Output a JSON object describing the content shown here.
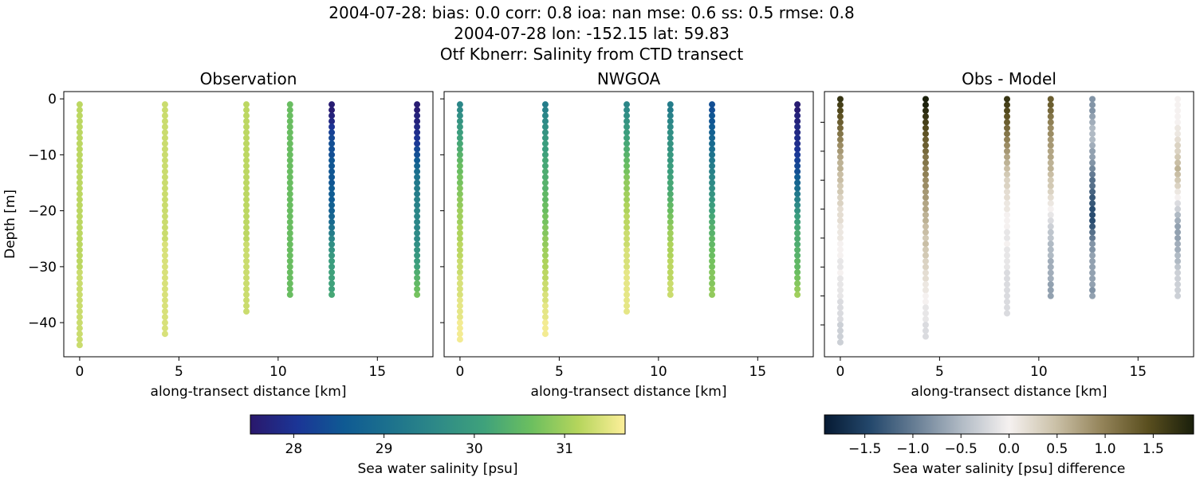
{
  "chart_data": {
    "type": "scatter",
    "title_lines": [
      "2004-07-28: bias: 0.0  corr: 0.8  ioa: nan  mse: 0.6  ss: 0.5  rmse: 0.8",
      "2004-07-28 lon: -152.15 lat: 59.83",
      "Otf Kbnerr: Salinity from CTD transect"
    ],
    "panels": [
      {
        "title": "Observation",
        "xlabel": "along-transect distance [km]",
        "ylabel": "Depth [m]",
        "xticks": [
          0,
          5,
          10,
          15
        ],
        "yticks": [
          0,
          -10,
          -20,
          -30,
          -40
        ],
        "xlim": [
          -0.8,
          17.8
        ],
        "ylim": [
          -46.1,
          1.3
        ],
        "source": "obs"
      },
      {
        "title": "NWGOA",
        "xlabel": "along-transect distance [km]",
        "ylabel": "",
        "xticks": [
          0,
          5,
          10,
          15
        ],
        "yticks": [],
        "xlim": [
          -0.8,
          17.8
        ],
        "ylim": [
          -46.1,
          1.3
        ],
        "source": "model"
      },
      {
        "title": "Obs - Model",
        "xlabel": "along-transect distance [km]",
        "ylabel": "",
        "xticks": [
          0,
          5,
          10,
          15
        ],
        "yticks_unlabeled": [
          -5,
          -10,
          -15,
          -20,
          -25,
          -30,
          -35,
          -40
        ],
        "xlim": [
          -0.8,
          17.8
        ],
        "ylim": [
          -45.5,
          0.3
        ],
        "source": "diff"
      }
    ],
    "stations_km": [
      0,
      4.3,
      8.4,
      10.6,
      12.7,
      17.0
    ],
    "obs_salinity_by_depth_1m": [
      [
        31.2,
        31.2,
        31.2,
        31.2,
        31.2,
        31.2,
        31.2,
        31.2,
        31.2,
        31.2,
        31.2,
        31.2,
        31.2,
        31.2,
        31.2,
        31.2,
        31.2,
        31.2,
        31.2,
        31.2,
        31.2,
        31.2,
        31.2,
        31.2,
        31.2,
        31.2,
        31.2,
        31.2,
        31.2,
        31.2,
        31.3,
        31.3,
        31.3,
        31.3,
        31.3,
        31.3,
        31.3,
        31.3,
        31.3,
        31.3,
        31.3,
        31.3,
        31.3,
        31.3
      ],
      [
        31.3,
        31.3,
        31.3,
        31.3,
        31.3,
        31.3,
        31.3,
        31.3,
        31.3,
        31.3,
        31.3,
        31.3,
        31.3,
        31.3,
        31.3,
        31.3,
        31.3,
        31.3,
        31.3,
        31.3,
        31.3,
        31.3,
        31.3,
        31.3,
        31.3,
        31.4,
        31.4,
        31.4,
        31.4,
        31.4,
        31.4,
        31.4,
        31.4,
        31.4,
        31.4,
        31.4,
        31.4,
        31.4,
        31.4,
        31.4,
        31.4,
        31.4
      ],
      [
        31.2,
        31.2,
        31.2,
        31.2,
        31.2,
        31.2,
        31.2,
        31.2,
        31.2,
        31.2,
        31.2,
        31.2,
        31.2,
        31.2,
        31.2,
        31.2,
        31.2,
        31.2,
        31.2,
        31.2,
        31.2,
        31.2,
        31.2,
        31.2,
        31.2,
        31.3,
        31.3,
        31.3,
        31.3,
        31.3,
        31.3,
        31.3,
        31.3,
        31.3,
        31.3,
        31.3,
        31.3,
        31.3
      ],
      [
        30.6,
        30.6,
        30.6,
        30.6,
        30.6,
        30.6,
        30.6,
        30.6,
        30.6,
        30.6,
        30.6,
        30.6,
        30.6,
        30.6,
        30.6,
        30.6,
        30.6,
        30.6,
        30.6,
        30.6,
        30.6,
        30.6,
        30.6,
        30.6,
        30.6,
        30.6,
        30.6,
        30.6,
        30.6,
        30.6,
        30.6,
        30.6,
        30.6,
        30.6,
        30.6
      ],
      [
        27.6,
        27.6,
        27.7,
        27.8,
        28.0,
        28.2,
        28.3,
        28.4,
        28.4,
        28.4,
        28.5,
        28.5,
        28.5,
        28.5,
        28.5,
        28.6,
        28.6,
        28.6,
        28.7,
        28.7,
        28.8,
        28.9,
        29.1,
        29.3,
        29.5,
        29.7,
        29.8,
        29.9,
        30.0,
        30.0,
        30.1,
        30.1,
        30.1,
        30.1,
        30.2
      ],
      [
        27.6,
        27.6,
        27.7,
        27.7,
        27.8,
        27.9,
        28.0,
        28.1,
        28.3,
        28.4,
        28.6,
        28.8,
        29.0,
        29.1,
        29.2,
        29.3,
        29.3,
        29.4,
        29.4,
        29.5,
        29.5,
        29.5,
        29.5,
        29.6,
        29.6,
        29.7,
        29.8,
        29.9,
        30.0,
        30.1,
        30.3,
        30.4,
        30.5,
        30.6,
        30.7
      ]
    ],
    "model_salinity_by_depth_1m": [
      [
        29.5,
        29.6,
        29.7,
        29.8,
        29.9,
        30.0,
        30.1,
        30.2,
        30.3,
        30.4,
        30.5,
        30.6,
        30.6,
        30.7,
        30.7,
        30.8,
        30.8,
        30.9,
        30.9,
        31.0,
        31.0,
        31.0,
        31.1,
        31.1,
        31.1,
        31.2,
        31.2,
        31.2,
        31.3,
        31.3,
        31.3,
        31.4,
        31.4,
        31.4,
        31.4,
        31.5,
        31.5,
        31.5,
        31.5,
        31.6,
        31.6,
        31.6,
        31.6
      ],
      [
        29.3,
        29.4,
        29.5,
        29.6,
        29.7,
        29.8,
        29.9,
        30.0,
        30.0,
        30.1,
        30.2,
        30.2,
        30.3,
        30.3,
        30.4,
        30.4,
        30.5,
        30.5,
        30.6,
        30.6,
        30.7,
        30.7,
        30.8,
        30.8,
        30.9,
        30.9,
        31.0,
        31.0,
        31.1,
        31.1,
        31.2,
        31.2,
        31.3,
        31.3,
        31.4,
        31.4,
        31.5,
        31.5,
        31.5,
        31.6,
        31.6,
        31.6
      ],
      [
        29.5,
        29.6,
        29.7,
        29.8,
        29.9,
        30.0,
        30.1,
        30.2,
        30.3,
        30.4,
        30.5,
        30.6,
        30.7,
        30.8,
        30.9,
        30.9,
        31.0,
        31.0,
        31.1,
        31.1,
        31.2,
        31.2,
        31.2,
        31.3,
        31.3,
        31.3,
        31.4,
        31.4,
        31.4,
        31.4,
        31.5,
        31.5,
        31.5,
        31.5,
        31.5,
        31.5,
        31.5,
        31.5
      ],
      [
        29.3,
        29.3,
        29.4,
        29.5,
        29.6,
        29.7,
        29.7,
        29.8,
        29.8,
        29.9,
        29.9,
        30.0,
        30.0,
        30.1,
        30.2,
        30.2,
        30.3,
        30.4,
        30.5,
        30.6,
        30.7,
        30.8,
        30.9,
        31.0,
        31.0,
        31.1,
        31.1,
        31.1,
        31.2,
        31.2,
        31.2,
        31.2,
        31.3,
        31.3,
        31.3
      ],
      [
        28.4,
        28.4,
        28.5,
        28.5,
        28.6,
        28.7,
        28.8,
        28.9,
        29.0,
        29.1,
        29.2,
        29.3,
        29.4,
        29.5,
        29.6,
        29.7,
        29.8,
        29.9,
        30.0,
        30.1,
        30.2,
        30.3,
        30.4,
        30.4,
        30.5,
        30.5,
        30.6,
        30.6,
        30.7,
        30.7,
        30.8,
        30.8,
        30.8,
        30.9,
        30.9
      ],
      [
        27.6,
        27.6,
        27.7,
        27.7,
        27.8,
        27.8,
        27.9,
        27.9,
        28.0,
        28.1,
        28.2,
        28.3,
        28.4,
        28.6,
        28.8,
        29.0,
        29.2,
        29.4,
        29.6,
        29.8,
        30.0,
        30.1,
        30.2,
        30.3,
        30.3,
        30.3,
        30.4,
        30.4,
        30.5,
        30.5,
        30.6,
        30.7,
        30.8,
        30.9,
        31.0
      ]
    ],
    "colorbars": [
      {
        "label": "Sea water salinity [psu]",
        "range": [
          27.52,
          31.67
        ],
        "ticks": [
          "28",
          "29",
          "30",
          "31"
        ],
        "tick_values": [
          28,
          29,
          30,
          31
        ],
        "colormap": "haline",
        "colors": [
          "#2a186c",
          "#1b3596",
          "#0f5a93",
          "#1d728d",
          "#2e8a87",
          "#3fa27b",
          "#6cbf5f",
          "#b5d55c",
          "#fdef9a"
        ]
      },
      {
        "label": "Sea water salinity [psu] difference",
        "range": [
          -1.92,
          1.92
        ],
        "ticks": [
          "−1.5",
          "−1.0",
          "−0.5",
          "0.0",
          "0.5",
          "1.0",
          "1.5"
        ],
        "tick_values": [
          -1.5,
          -1.0,
          -0.5,
          0,
          0.5,
          1.0,
          1.5
        ],
        "colormap": "diff",
        "colors": [
          "#061a33",
          "#24486c",
          "#6a8096",
          "#b3bcc6",
          "#f5f1f0",
          "#cbc1a8",
          "#94845a",
          "#5a4f1f",
          "#1a1f0b"
        ]
      }
    ]
  }
}
